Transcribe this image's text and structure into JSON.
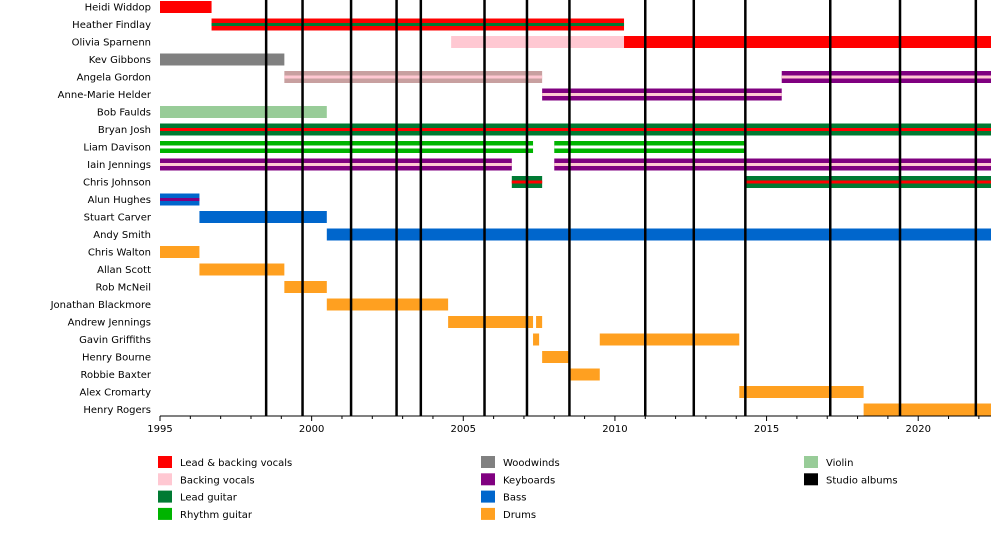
{
  "chart_data": {
    "type": "timeline",
    "x_axis": {
      "min": 1995,
      "max": 2022.4,
      "ticks": [
        1995,
        2000,
        2005,
        2010,
        2015,
        2020
      ]
    },
    "grid": false,
    "legend_placement": "bottom",
    "colors": {
      "lead_backing_vocals": "#ff0000",
      "backing_vocals": "#ffc8d2",
      "lead_guitar": "#007a33",
      "rhythm_guitar": "#00b400",
      "woodwinds": "#808080",
      "keyboards": "#800080",
      "bass": "#0066cc",
      "drums": "#ffa020",
      "violin": "#98cc98",
      "studio_albums": "#000000"
    },
    "legend": [
      {
        "label": "Lead & backing vocals",
        "color": "#ff0000"
      },
      {
        "label": "Backing vocals",
        "color": "#ffc8d2"
      },
      {
        "label": "Lead guitar",
        "color": "#007a33"
      },
      {
        "label": "Rhythm guitar",
        "color": "#00b400"
      },
      {
        "label": "Woodwinds",
        "color": "#808080"
      },
      {
        "label": "Keyboards",
        "color": "#800080"
      },
      {
        "label": "Bass",
        "color": "#0066cc"
      },
      {
        "label": "Drums",
        "color": "#ffa020"
      },
      {
        "label": "Violin",
        "color": "#98cc98"
      },
      {
        "label": "Studio albums",
        "color": "#000000"
      }
    ],
    "studio_albums": [
      1998.5,
      1999.7,
      2001.3,
      2002.8,
      2003.6,
      2005.7,
      2007.1,
      2008.5,
      2011.0,
      2012.6,
      2014.3,
      2017.1,
      2019.4,
      2021.9
    ],
    "members": [
      {
        "name": "Heidi Widdop",
        "spans": [
          {
            "start": 1995,
            "end": 1996.7,
            "main": "#ff0000"
          }
        ]
      },
      {
        "name": "Heather Findlay",
        "spans": [
          {
            "start": 1996.7,
            "end": 2010.3,
            "main": "#ff0000",
            "stripe": "#007a33"
          }
        ]
      },
      {
        "name": "Olivia Sparnenn",
        "spans": [
          {
            "start": 2004.6,
            "end": 2010.3,
            "main": "#ffc8d2"
          },
          {
            "start": 2010.3,
            "end": 2022.4,
            "main": "#ff0000"
          }
        ]
      },
      {
        "name": "Kev Gibbons",
        "spans": [
          {
            "start": 1995,
            "end": 1999.1,
            "main": "#808080"
          }
        ]
      },
      {
        "name": "Angela Gordon",
        "spans": [
          {
            "start": 1999.1,
            "end": 2007.6,
            "main": "#c8a0a0",
            "stripe": "#ffc8d2"
          },
          {
            "start": 2015.5,
            "end": 2022.4,
            "main": "#800080",
            "stripe": "#ffc8d2"
          }
        ]
      },
      {
        "name": "Anne-Marie Helder",
        "spans": [
          {
            "start": 2007.6,
            "end": 2015.5,
            "main": "#800080",
            "stripe": "#ffc8d2"
          }
        ]
      },
      {
        "name": "Bob Faulds",
        "spans": [
          {
            "start": 1995,
            "end": 2000.5,
            "main": "#98cc98"
          }
        ]
      },
      {
        "name": "Bryan Josh",
        "spans": [
          {
            "start": 1995,
            "end": 2022.4,
            "main": "#007a33",
            "stripe": "#ff0000"
          }
        ]
      },
      {
        "name": "Liam Davison",
        "spans": [
          {
            "start": 1995,
            "end": 2007.3,
            "main": "#00b400",
            "stripe": "#ffffff"
          },
          {
            "start": 2008,
            "end": 2014.3,
            "main": "#00b400",
            "stripe": "#ffffff"
          }
        ]
      },
      {
        "name": "Iain Jennings",
        "spans": [
          {
            "start": 1995,
            "end": 2006.6,
            "main": "#800080",
            "stripe": "#ffc8d2"
          },
          {
            "start": 2008,
            "end": 2022.4,
            "main": "#800080",
            "stripe": "#ffc8d2"
          }
        ]
      },
      {
        "name": "Chris Johnson",
        "spans": [
          {
            "start": 2006.6,
            "end": 2007.6,
            "main": "#007a33",
            "stripe": "#ff0000"
          },
          {
            "start": 2014.3,
            "end": 2022.4,
            "main": "#007a33",
            "stripe": "#ff0000"
          }
        ]
      },
      {
        "name": "Alun Hughes",
        "spans": [
          {
            "start": 1995,
            "end": 1996.3,
            "main": "#0066cc",
            "stripe": "#800080"
          }
        ]
      },
      {
        "name": "Stuart Carver",
        "spans": [
          {
            "start": 1996.3,
            "end": 2000.5,
            "main": "#0066cc"
          }
        ]
      },
      {
        "name": "Andy Smith",
        "spans": [
          {
            "start": 2000.5,
            "end": 2022.4,
            "main": "#0066cc"
          }
        ]
      },
      {
        "name": "Chris Walton",
        "spans": [
          {
            "start": 1995,
            "end": 1996.3,
            "main": "#ffa020"
          }
        ]
      },
      {
        "name": "Allan Scott",
        "spans": [
          {
            "start": 1996.3,
            "end": 1999.1,
            "main": "#ffa020"
          }
        ]
      },
      {
        "name": "Rob McNeil",
        "spans": [
          {
            "start": 1999.1,
            "end": 2000.5,
            "main": "#ffa020"
          }
        ]
      },
      {
        "name": "Jonathan Blackmore",
        "spans": [
          {
            "start": 2000.5,
            "end": 2004.5,
            "main": "#ffa020"
          }
        ]
      },
      {
        "name": "Andrew Jennings",
        "spans": [
          {
            "start": 2004.5,
            "end": 2007.3,
            "main": "#ffa020"
          },
          {
            "start": 2007.4,
            "end": 2007.6,
            "main": "#ffa020"
          }
        ]
      },
      {
        "name": "Gavin Griffiths",
        "spans": [
          {
            "start": 2007.3,
            "end": 2007.5,
            "main": "#ffa020"
          },
          {
            "start": 2009.5,
            "end": 2014.1,
            "main": "#ffa020"
          }
        ]
      },
      {
        "name": "Henry Bourne",
        "spans": [
          {
            "start": 2007.6,
            "end": 2008.5,
            "main": "#ffa020"
          }
        ]
      },
      {
        "name": "Robbie Baxter",
        "spans": [
          {
            "start": 2008.5,
            "end": 2009.5,
            "main": "#ffa020"
          }
        ]
      },
      {
        "name": "Alex Cromarty",
        "spans": [
          {
            "start": 2014.1,
            "end": 2018.2,
            "main": "#ffa020"
          }
        ]
      },
      {
        "name": "Henry Rogers",
        "spans": [
          {
            "start": 2018.2,
            "end": 2022.4,
            "main": "#ffa020"
          }
        ]
      }
    ]
  }
}
